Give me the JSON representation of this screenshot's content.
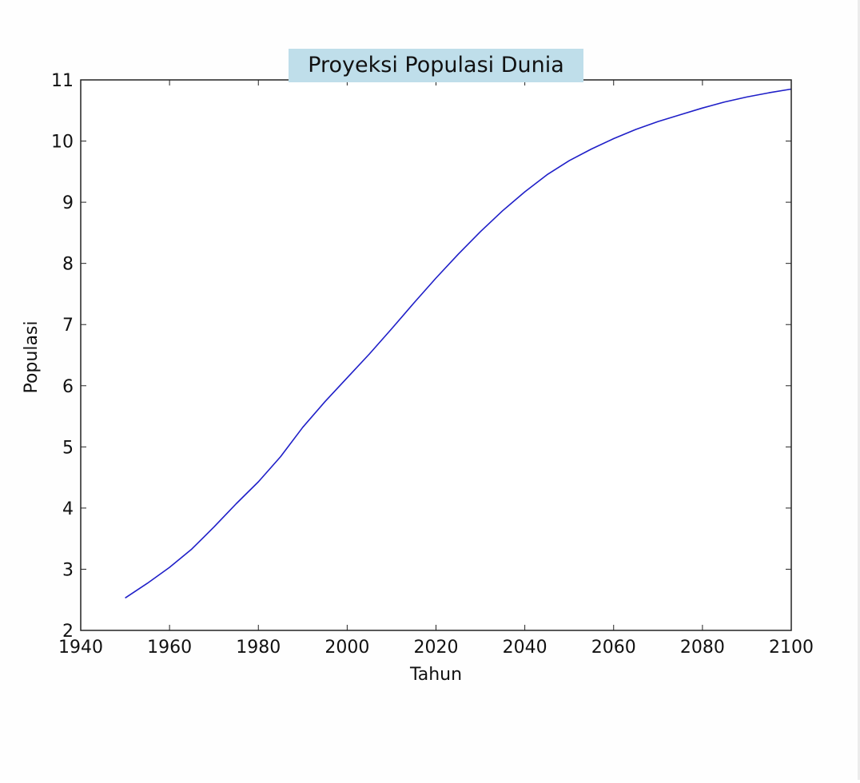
{
  "chart_data": {
    "type": "line",
    "title": "Proyeksi Populasi Dunia",
    "xlabel": "Tahun",
    "ylabel": "Populasi",
    "xlim": [
      1940,
      2100
    ],
    "ylim": [
      2,
      11
    ],
    "xticks": [
      1940,
      1960,
      1980,
      2000,
      2020,
      2040,
      2060,
      2080,
      2100
    ],
    "yticks": [
      2,
      3,
      4,
      5,
      6,
      7,
      8,
      9,
      10,
      11
    ],
    "grid": false,
    "colors": {
      "line": "#1f1fc8",
      "title_background": "#bfdeea",
      "title_text": "#1c2d3a"
    },
    "series": [
      {
        "x": [
          1950,
          1955,
          1960,
          1965,
          1970,
          1975,
          1980,
          1985,
          1990,
          1995,
          2000,
          2005,
          2010,
          2015,
          2020,
          2025,
          2030,
          2035,
          2040,
          2045,
          2050,
          2055,
          2060,
          2065,
          2070,
          2075,
          2080,
          2085,
          2090,
          2095,
          2100
        ],
        "y": [
          2.53,
          2.77,
          3.03,
          3.33,
          3.69,
          4.07,
          4.43,
          4.84,
          5.32,
          5.74,
          6.13,
          6.52,
          6.93,
          7.35,
          7.76,
          8.15,
          8.52,
          8.86,
          9.17,
          9.45,
          9.68,
          9.87,
          10.04,
          10.19,
          10.32,
          10.43,
          10.54,
          10.64,
          10.72,
          10.79,
          10.85
        ]
      }
    ]
  }
}
